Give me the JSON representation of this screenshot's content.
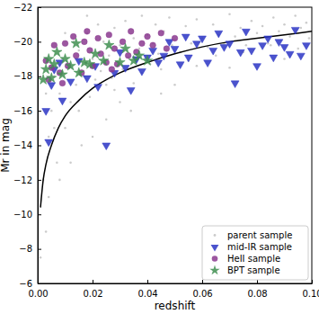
{
  "chart_data": {
    "type": "scatter",
    "x_label": "redshift",
    "y_label": "Mr in mag",
    "xlim": [
      0.0,
      0.1
    ],
    "ylim": [
      -6,
      -22
    ],
    "xticks": [
      {
        "value": 0.0,
        "label": "0.00"
      },
      {
        "value": 0.02,
        "label": "0.02"
      },
      {
        "value": 0.04,
        "label": "0.04"
      },
      {
        "value": 0.06,
        "label": "0.06"
      },
      {
        "value": 0.08,
        "label": "0.08"
      },
      {
        "value": 0.1,
        "label": "0.10"
      }
    ],
    "yticks": [
      {
        "value": -22,
        "label": "−22"
      },
      {
        "value": -20,
        "label": "−20"
      },
      {
        "value": -18,
        "label": "−18"
      },
      {
        "value": -16,
        "label": "−16"
      },
      {
        "value": -14,
        "label": "−14"
      },
      {
        "value": -12,
        "label": "−12"
      },
      {
        "value": -10,
        "label": "−10"
      },
      {
        "value": -8,
        "label": "−8"
      },
      {
        "value": -6,
        "label": "−6"
      }
    ],
    "legend": "lower right",
    "series": [
      {
        "name": "parent sample",
        "type": "scatter",
        "marker": "point",
        "color": "#a8a8a8",
        "x": [
          0.002,
          0.003,
          0.004,
          0.005,
          0.006,
          0.007,
          0.008,
          0.009,
          0.01,
          0.011,
          0.012,
          0.013,
          0.014,
          0.015,
          0.016,
          0.017,
          0.018,
          0.019,
          0.02,
          0.021,
          0.022,
          0.023,
          0.024,
          0.025,
          0.026,
          0.027,
          0.028,
          0.029,
          0.03,
          0.031,
          0.032,
          0.033,
          0.034,
          0.035,
          0.036,
          0.037,
          0.038,
          0.039,
          0.04,
          0.041,
          0.042,
          0.043,
          0.044,
          0.045,
          0.046,
          0.047,
          0.048,
          0.049,
          0.05,
          0.052,
          0.054,
          0.056,
          0.058,
          0.06,
          0.062,
          0.064,
          0.066,
          0.068,
          0.07,
          0.072,
          0.074,
          0.076,
          0.078,
          0.08,
          0.082,
          0.084,
          0.086,
          0.088,
          0.09,
          0.092,
          0.094,
          0.096,
          0.098,
          0.099,
          0.001,
          0.004,
          0.008,
          0.012,
          0.02,
          0.03,
          0.05,
          0.07,
          0.09,
          0.006,
          0.015,
          0.025,
          0.035,
          0.045,
          0.055,
          0.065,
          0.075,
          0.085,
          0.095,
          0.003,
          0.01,
          0.018,
          0.028,
          0.038,
          0.058
        ],
        "values": [
          -12,
          -9,
          -14.5,
          -16,
          -18,
          -13,
          -17,
          -19,
          -15,
          -18.5,
          -16.5,
          -20,
          -17.5,
          -19.5,
          -14,
          -18,
          -20.5,
          -16.8,
          -19,
          -17.8,
          -21,
          -18.3,
          -20,
          -15.5,
          -19.2,
          -17.9,
          -20.8,
          -18.6,
          -19.8,
          -18.4,
          -21.2,
          -19.1,
          -16,
          -20.2,
          -18.9,
          -19.6,
          -21.5,
          -19,
          -20.4,
          -18.7,
          -19.9,
          -21,
          -19.3,
          -17,
          -20.6,
          -19.5,
          -21.4,
          -19.8,
          -20.1,
          -19.4,
          -20.9,
          -19.9,
          -21.3,
          -20.2,
          -19.7,
          -21,
          -20.4,
          -19.9,
          -21.6,
          -20.3,
          -20.8,
          -19.8,
          -21.2,
          -20.5,
          -20.9,
          -19.9,
          -21.4,
          -20.6,
          -21,
          -20.3,
          -21.5,
          -20.8,
          -21.1,
          -20.2,
          -7.5,
          -11,
          -12,
          -13,
          -14.5,
          -16.5,
          -17.5,
          -18.5,
          -19,
          -15,
          -16,
          -17.5,
          -17.6,
          -18.4,
          -18.9,
          -19.2,
          -19.4,
          -19.8,
          -19.6,
          -17,
          -20.5,
          -21.5,
          -17.2,
          -18.2,
          -18.6
        ]
      },
      {
        "type": "line",
        "color": "#000000",
        "line_style": "solid",
        "x": [
          0.001,
          0.002,
          0.003,
          0.005,
          0.0075,
          0.01,
          0.015,
          0.02,
          0.025,
          0.03,
          0.04,
          0.05,
          0.06,
          0.07,
          0.08,
          0.09,
          0.1
        ],
        "values": [
          -10.4,
          -12.0,
          -12.9,
          -14.0,
          -15.0,
          -15.7,
          -16.6,
          -17.3,
          -17.8,
          -18.2,
          -18.8,
          -19.3,
          -19.7,
          -20.0,
          -20.2,
          -20.4,
          -20.6
        ]
      },
      {
        "name": "mid-IR sample",
        "type": "scatter",
        "marker": "triangle_down",
        "color": "#2b35c4",
        "x": [
          0.003,
          0.004,
          0.005,
          0.006,
          0.008,
          0.009,
          0.012,
          0.015,
          0.018,
          0.021,
          0.022,
          0.025,
          0.028,
          0.03,
          0.032,
          0.034,
          0.036,
          0.038,
          0.04,
          0.042,
          0.044,
          0.046,
          0.048,
          0.05,
          0.052,
          0.054,
          0.055,
          0.058,
          0.06,
          0.062,
          0.064,
          0.066,
          0.068,
          0.07,
          0.072,
          0.074,
          0.076,
          0.078,
          0.08,
          0.082,
          0.084,
          0.086,
          0.088,
          0.09,
          0.092,
          0.094,
          0.096,
          0.098
        ],
        "values": [
          -16,
          -14.2,
          -17.5,
          -18.4,
          -18.8,
          -16.6,
          -17.7,
          -18.9,
          -17.9,
          -18.6,
          -17.4,
          -14,
          -18.2,
          -19.4,
          -18.5,
          -17.2,
          -19,
          -18.3,
          -19.1,
          -19.5,
          -18.8,
          -19.2,
          -20,
          -19.6,
          -18.7,
          -20.3,
          -19.1,
          -19.9,
          -20.2,
          -18.8,
          -19.5,
          -20.5,
          -19.7,
          -19.9,
          -17.6,
          -19.4,
          -20.6,
          -19.5,
          -18.6,
          -19.8,
          -20.2,
          -19.1,
          -20,
          -19.7,
          -19.3,
          -20.7,
          -19.2,
          -19.8
        ]
      },
      {
        "name": "HeII sample",
        "type": "scatter",
        "marker": "circle",
        "color": "#8b3a8f",
        "x": [
          0.003,
          0.004,
          0.006,
          0.008,
          0.01,
          0.011,
          0.013,
          0.014,
          0.016,
          0.017,
          0.019,
          0.02,
          0.022,
          0.023,
          0.025,
          0.026,
          0.028,
          0.029,
          0.031,
          0.033,
          0.034,
          0.036,
          0.038,
          0.04,
          0.042,
          0.045,
          0.047,
          0.05,
          0.005,
          0.009,
          0.018,
          0.027
        ],
        "values": [
          -18.9,
          -17.8,
          -19.8,
          -18.2,
          -19.9,
          -18.6,
          -20.3,
          -19.2,
          -18.2,
          -20,
          -19.5,
          -18.6,
          -20.2,
          -19.3,
          -18.8,
          -20.4,
          -19.6,
          -18.7,
          -20,
          -19.2,
          -20.6,
          -19.4,
          -19.9,
          -20.3,
          -19.8,
          -20.5,
          -19.6,
          -20.2,
          -18.5,
          -17.6,
          -20.6,
          -18.4
        ]
      },
      {
        "name": "BPT sample",
        "type": "scatter",
        "marker": "star",
        "color": "#3f8f50",
        "x": [
          0.002,
          0.003,
          0.004,
          0.005,
          0.006,
          0.007,
          0.009,
          0.01,
          0.012,
          0.014,
          0.015,
          0.017,
          0.019,
          0.021,
          0.024,
          0.026,
          0.03,
          0.032,
          0.035,
          0.037,
          0.04
        ],
        "values": [
          -17.8,
          -18.4,
          -19,
          -17.9,
          -18.7,
          -19.4,
          -18.1,
          -19,
          -18.6,
          -19.9,
          -18.2,
          -18.8,
          -18.7,
          -19.3,
          -18.9,
          -19.8,
          -18.8,
          -19.6,
          -18.9,
          -19.2,
          -18.9
        ]
      }
    ]
  }
}
